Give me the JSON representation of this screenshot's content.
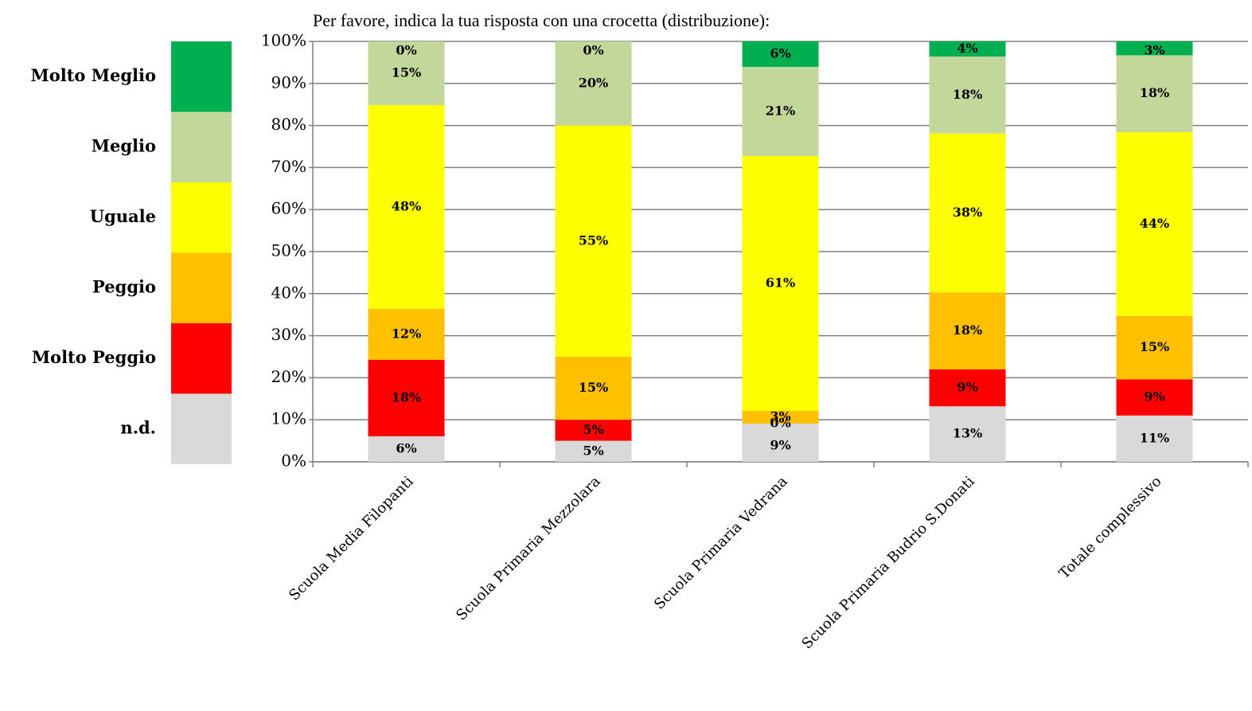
{
  "chart_data": {
    "type": "stacked_bar",
    "title": "Per favore, indica la tua risposta con una crocetta (distribuzione):",
    "categories": [
      "Scuola Media Filopanti",
      "Scuola Primaria Mezzolara",
      "Scuola Primaria Vedrana",
      "Scuola Primaria Budrio S.Donati",
      "Totale complessivo"
    ],
    "series": [
      {
        "name": "n.d.",
        "color": "#d9d9d9",
        "values": [
          6.06,
          5,
          9.09,
          13.2,
          11
        ],
        "value_labels": [
          "6%",
          "5%",
          "9%",
          "13%",
          "11%"
        ]
      },
      {
        "name": "Molto Peggio",
        "color": "#ff0000",
        "values": [
          18.18,
          5,
          0,
          8.8,
          8.6
        ],
        "value_labels": [
          "18%",
          "5%",
          "0%",
          "9%",
          "9%"
        ]
      },
      {
        "name": "Peggio",
        "color": "#ffc000",
        "values": [
          12.12,
          15,
          3.03,
          18.3,
          15.1
        ],
        "value_labels": [
          "12%",
          "15%",
          "3%",
          "18%",
          "15%"
        ]
      },
      {
        "name": "Uguale",
        "color": "#ffff00",
        "values": [
          48.48,
          55,
          60.61,
          37.8,
          43.7
        ],
        "value_labels": [
          "48%",
          "55%",
          "61%",
          "38%",
          "44%"
        ]
      },
      {
        "name": "Meglio",
        "color": "#c4d79b",
        "values": [
          15.15,
          20,
          21.21,
          18.3,
          18.3
        ],
        "value_labels": [
          "15%",
          "20%",
          "21%",
          "18%",
          "18%"
        ]
      },
      {
        "name": "Molto Meglio",
        "color": "#00b050",
        "values": [
          0,
          0,
          6.06,
          3.6,
          3.3
        ],
        "value_labels": [
          "0%",
          "0%",
          "6%",
          "4%",
          "3%"
        ]
      }
    ],
    "ylim": [
      0,
      100
    ],
    "yticks": [
      {
        "value": 0,
        "label": "0%"
      },
      {
        "value": 10,
        "label": "10%"
      },
      {
        "value": 20,
        "label": "20%"
      },
      {
        "value": 30,
        "label": "30%"
      },
      {
        "value": 40,
        "label": "40%"
      },
      {
        "value": 50,
        "label": "50%"
      },
      {
        "value": 60,
        "label": "60%"
      },
      {
        "value": 70,
        "label": "70%"
      },
      {
        "value": 80,
        "label": "80%"
      },
      {
        "value": 90,
        "label": "90%"
      },
      {
        "value": 100,
        "label": "100%"
      }
    ],
    "grid": true,
    "legend": "left"
  }
}
